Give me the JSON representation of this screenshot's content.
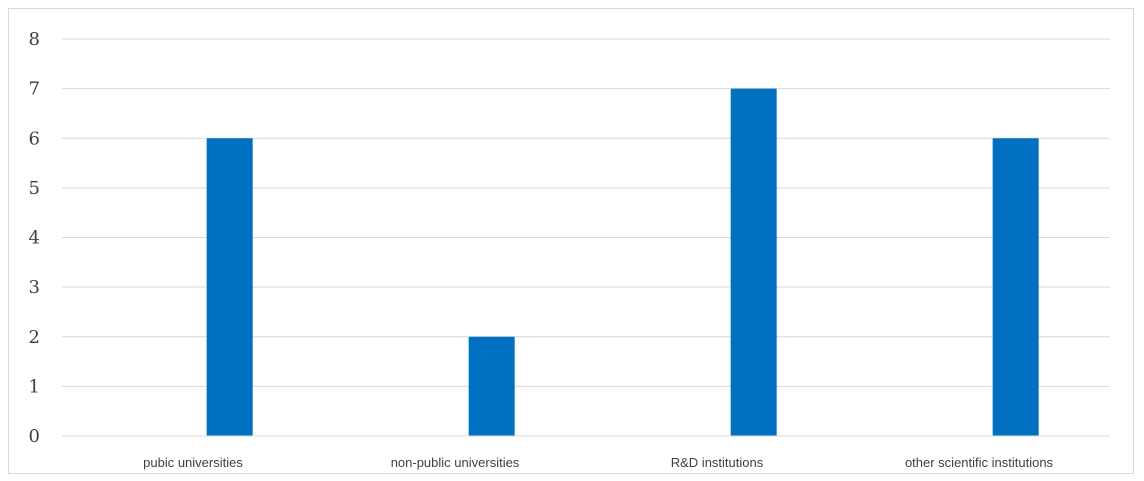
{
  "chart_data": {
    "type": "bar",
    "categories": [
      "pubic universities",
      "non-public universities",
      "R&D institutions",
      "other scientific institutions"
    ],
    "series": [
      {
        "values": [
          6,
          2,
          7,
          6
        ],
        "color": "#0070c0"
      }
    ],
    "ylim": [
      0,
      8
    ],
    "yticks": [
      0,
      1,
      2,
      3,
      4,
      5,
      6,
      7,
      8
    ],
    "grid": true,
    "legend": "none",
    "colors": {
      "bar": "#0070c0",
      "grid": "#d9d9d9",
      "axis": "#d9d9d9",
      "text": "#404040",
      "border": "#d9d9d9"
    }
  }
}
